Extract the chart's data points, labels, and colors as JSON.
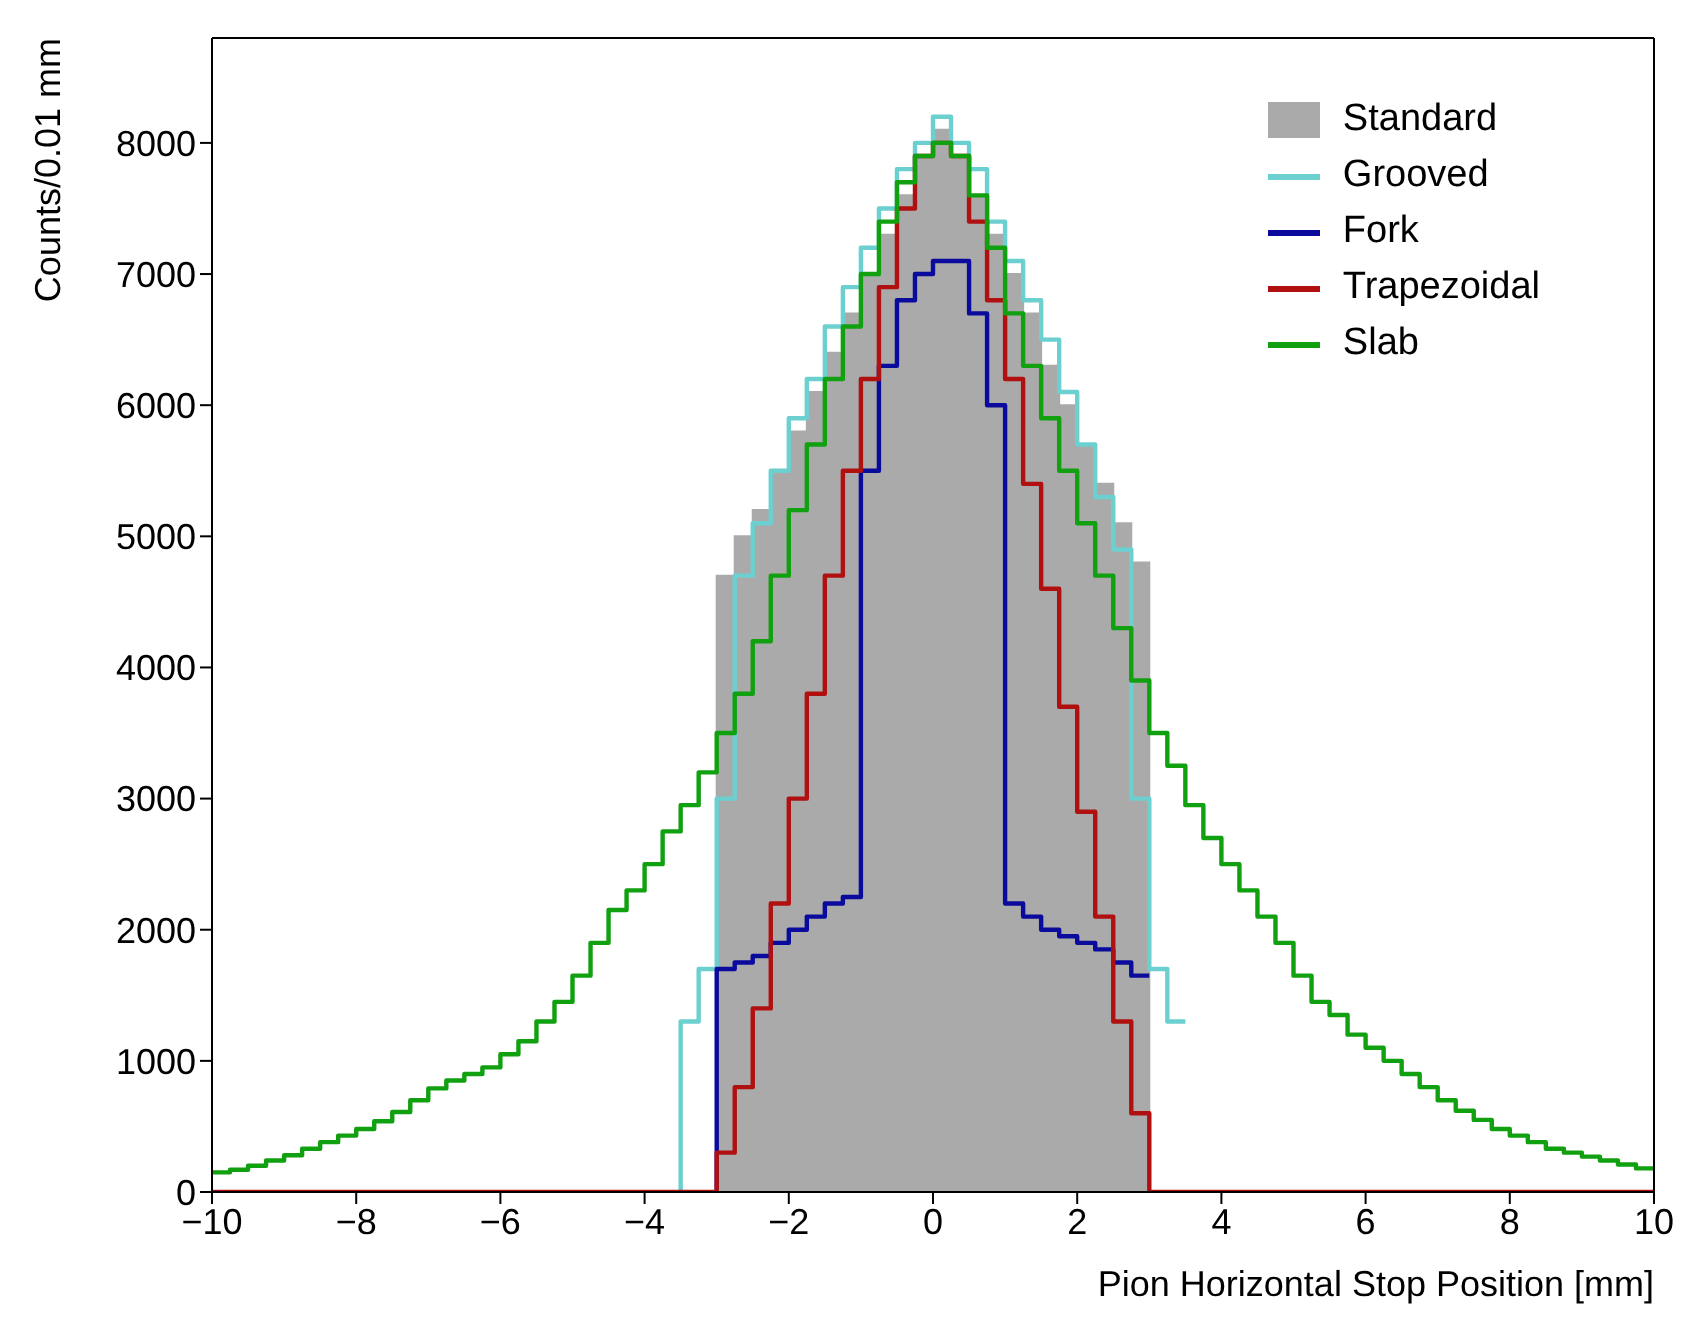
{
  "chart_data": {
    "type": "histogram",
    "xlabel": "Pion Horizontal Stop Position [mm]",
    "ylabel": "Counts/0.01 mm",
    "bins": [
      -10,
      -9.75,
      -9.5,
      -9.25,
      -9,
      -8.75,
      -8.5,
      -8.25,
      -8,
      -7.75,
      -7.5,
      -7.25,
      -7,
      -6.75,
      -6.5,
      -6.25,
      -6,
      -5.75,
      -5.5,
      -5.25,
      -5,
      -4.75,
      -4.5,
      -4.25,
      -4,
      -3.75,
      -3.5,
      -3.25,
      -3,
      -2.75,
      -2.5,
      -2.25,
      -2,
      -1.75,
      -1.5,
      -1.25,
      -1,
      -0.75,
      -0.5,
      -0.25,
      0,
      0.25,
      0.5,
      0.75,
      1,
      1.25,
      1.5,
      1.75,
      2,
      2.25,
      2.5,
      2.75,
      3,
      3.25,
      3.5,
      3.75,
      4,
      4.25,
      4.5,
      4.75,
      5,
      5.25,
      5.5,
      5.75,
      6,
      6.25,
      6.5,
      6.75,
      7,
      7.25,
      7.5,
      7.75,
      8,
      8.25,
      8.5,
      8.75,
      9,
      9.25,
      9.5,
      9.75,
      10
    ],
    "series": [
      {
        "name": "Standard",
        "type": "histogram",
        "color": "#aaaaaa",
        "values": [
          0,
          0,
          0,
          0,
          0,
          0,
          0,
          0,
          0,
          0,
          0,
          0,
          0,
          0,
          0,
          0,
          0,
          0,
          0,
          0,
          0,
          0,
          0,
          0,
          0,
          0,
          0,
          0,
          4700,
          5000,
          5200,
          5500,
          5800,
          6100,
          6400,
          6700,
          7000,
          7300,
          7600,
          7900,
          8100,
          7900,
          7600,
          7300,
          7000,
          6700,
          6300,
          6000,
          5700,
          5400,
          5100,
          4800,
          0,
          0,
          0,
          0,
          0,
          0,
          0,
          0,
          0,
          0,
          0,
          0,
          0,
          0,
          0,
          0,
          0,
          0,
          0,
          0,
          0,
          0,
          0,
          0,
          0,
          0,
          0,
          0
        ]
      },
      {
        "name": "Grooved",
        "type": "step",
        "color": "#6ccfd0",
        "x": [
          -3.5,
          -3.25,
          -3,
          -2.75,
          -2.5,
          -2.25,
          -2,
          -1.75,
          -1.5,
          -1.25,
          -1,
          -0.75,
          -0.5,
          -0.25,
          0,
          0.25,
          0.5,
          0.75,
          1,
          1.25,
          1.5,
          1.75,
          2,
          2.25,
          2.5,
          2.75,
          3,
          3.25,
          3.5
        ],
        "values": [
          0,
          1300,
          1700,
          3000,
          4700,
          5100,
          5500,
          5900,
          6200,
          6600,
          6900,
          7200,
          7500,
          7800,
          8000,
          8200,
          8000,
          7800,
          7400,
          7100,
          6800,
          6500,
          6100,
          5700,
          5300,
          4900,
          3000,
          1700,
          1300
        ]
      },
      {
        "name": "Fork",
        "type": "step",
        "color": "#0a0a9c",
        "x": [
          -3,
          -2.75,
          -2.5,
          -2.25,
          -2,
          -1.75,
          -1.5,
          -1.25,
          -1,
          -0.75,
          -0.5,
          -0.25,
          0,
          0.25,
          0.5,
          0.75,
          1,
          1.25,
          1.5,
          1.75,
          2,
          2.25,
          2.5,
          2.75,
          3
        ],
        "values": [
          0,
          1700,
          1750,
          1800,
          1900,
          2000,
          2100,
          2200,
          2250,
          5500,
          6300,
          6800,
          7000,
          7100,
          7100,
          6700,
          6000,
          2200,
          2100,
          2000,
          1950,
          1900,
          1850,
          1750,
          1650
        ]
      },
      {
        "name": "Trapezoidal",
        "type": "step",
        "color": "#b01010",
        "x": [
          -10,
          -9.75,
          -9.5,
          -9.25,
          -9,
          -8.75,
          -8.5,
          -8.25,
          -8,
          -7.75,
          -7.5,
          -7.25,
          -7,
          -6.75,
          -6.5,
          -6.25,
          -6,
          -5.75,
          -5.5,
          -5.25,
          -5,
          -4.75,
          -4.5,
          -4.25,
          -4,
          -3.75,
          -3.5,
          -3.25,
          -3,
          -2.75,
          -2.5,
          -2.25,
          -2,
          -1.75,
          -1.5,
          -1.25,
          -1,
          -0.75,
          -0.5,
          -0.25,
          0,
          0.25,
          0.5,
          0.75,
          1,
          1.25,
          1.5,
          1.75,
          2,
          2.25,
          2.5,
          2.75,
          3,
          3.25,
          3.5,
          3.75,
          4,
          4.25,
          4.5,
          4.75,
          5,
          5.25,
          5.5,
          5.75,
          6,
          6.25,
          6.5,
          6.75,
          7,
          7.25,
          7.5,
          7.75,
          8,
          8.25,
          8.5,
          8.75,
          9,
          9.25,
          9.5,
          9.75,
          10
        ],
        "values": [
          0,
          0,
          0,
          0,
          0,
          0,
          0,
          0,
          0,
          0,
          0,
          0,
          0,
          0,
          0,
          0,
          0,
          0,
          0,
          0,
          0,
          0,
          0,
          0,
          0,
          0,
          0,
          0,
          0,
          300,
          800,
          1400,
          2200,
          3000,
          3800,
          4700,
          5500,
          6200,
          6900,
          7500,
          7900,
          8000,
          7900,
          7400,
          6800,
          6200,
          5400,
          4600,
          3700,
          2900,
          2100,
          1300,
          600,
          0,
          0,
          0,
          0,
          0,
          0,
          0,
          0,
          0,
          0,
          0,
          0,
          0,
          0,
          0,
          0,
          0,
          0,
          0,
          0,
          0,
          0,
          0,
          0,
          0,
          0,
          0,
          0
        ]
      },
      {
        "name": "Slab",
        "type": "step",
        "color": "#10a010",
        "x": [
          -10,
          -9.75,
          -9.5,
          -9.25,
          -9,
          -8.75,
          -8.5,
          -8.25,
          -8,
          -7.75,
          -7.5,
          -7.25,
          -7,
          -6.75,
          -6.5,
          -6.25,
          -6,
          -5.75,
          -5.5,
          -5.25,
          -5,
          -4.75,
          -4.5,
          -4.25,
          -4,
          -3.75,
          -3.5,
          -3.25,
          -3,
          -2.75,
          -2.5,
          -2.25,
          -2,
          -1.75,
          -1.5,
          -1.25,
          -1,
          -0.75,
          -0.5,
          -0.25,
          0,
          0.25,
          0.5,
          0.75,
          1,
          1.25,
          1.5,
          1.75,
          2,
          2.25,
          2.5,
          2.75,
          3,
          3.25,
          3.5,
          3.75,
          4,
          4.25,
          4.5,
          4.75,
          5,
          5.25,
          5.5,
          5.75,
          6,
          6.25,
          6.5,
          6.75,
          7,
          7.25,
          7.5,
          7.75,
          8,
          8.25,
          8.5,
          8.75,
          9,
          9.25,
          9.5,
          9.75,
          10
        ],
        "values": [
          150,
          150,
          170,
          200,
          240,
          280,
          330,
          380,
          430,
          480,
          540,
          610,
          700,
          790,
          850,
          900,
          950,
          1050,
          1150,
          1300,
          1450,
          1650,
          1900,
          2150,
          2300,
          2500,
          2750,
          2950,
          3200,
          3500,
          3800,
          4200,
          4700,
          5200,
          5700,
          6200,
          6600,
          7000,
          7400,
          7700,
          7900,
          8000,
          7900,
          7600,
          7200,
          6700,
          6300,
          5900,
          5500,
          5100,
          4700,
          4300,
          3900,
          3500,
          3250,
          2950,
          2700,
          2500,
          2300,
          2100,
          1900,
          1650,
          1450,
          1350,
          1200,
          1100,
          1000,
          900,
          800,
          700,
          620,
          550,
          480,
          430,
          380,
          330,
          300,
          270,
          240,
          210,
          180
        ]
      }
    ],
    "xlim": [
      -10,
      10
    ],
    "xticks": [
      -10,
      -8,
      -6,
      -4,
      -2,
      0,
      2,
      4,
      6,
      8,
      10
    ],
    "ylim": [
      0,
      8800
    ],
    "yticks": [
      0,
      1000,
      2000,
      3000,
      4000,
      5000,
      6000,
      7000,
      8000
    ],
    "grid": false,
    "legend": "top right"
  }
}
